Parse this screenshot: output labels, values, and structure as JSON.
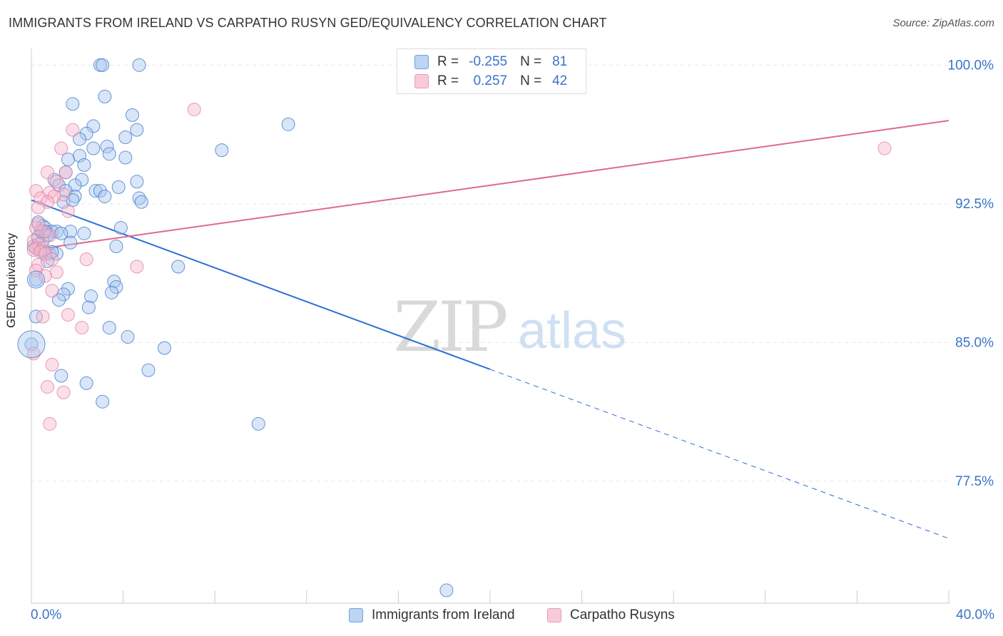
{
  "header": {
    "title": "IMMIGRANTS FROM IRELAND VS CARPATHO RUSYN GED/EQUIVALENCY CORRELATION CHART",
    "source": "Source: ZipAtlas.com"
  },
  "watermark": {
    "zip": "ZIP",
    "atlas": "atlas"
  },
  "colors": {
    "blue_fill": "#a8c8f0",
    "blue_stroke": "#3a73c8",
    "blue_line": "#2e6fd4",
    "pink_fill": "#f6b8cc",
    "pink_stroke": "#e07aa0",
    "pink_line": "#e0698f",
    "axis_text": "#3a73c8",
    "grid": "#e5e5e5"
  },
  "legend": {
    "rows": [
      {
        "r_label": "R =",
        "r_value": "-0.255",
        "n_label": "N =",
        "n_value": "81"
      },
      {
        "r_label": "R =",
        "r_value": "0.257",
        "n_label": "N =",
        "n_value": "42"
      }
    ]
  },
  "chart_data": {
    "type": "scatter",
    "title": "IMMIGRANTS FROM IRELAND VS CARPATHO RUSYN GED/EQUIVALENCY CORRELATION CHART",
    "xlabel": "",
    "ylabel": "GED/Equivalency",
    "xlim": [
      0,
      40
    ],
    "ylim": [
      70.9,
      100.9
    ],
    "x_tick_labels": [
      {
        "value": 0,
        "label": "0.0%"
      },
      {
        "value": 40,
        "label": "40.0%"
      }
    ],
    "y_tick_labels": [
      {
        "value": 100.0,
        "label": "100.0%"
      },
      {
        "value": 92.5,
        "label": "92.5%"
      },
      {
        "value": 85.0,
        "label": "85.0%"
      },
      {
        "value": 77.5,
        "label": "77.5%"
      }
    ],
    "grid": true,
    "legend_position": "top-center",
    "series": [
      {
        "name": "Immigrants from Ireland",
        "color": "blue",
        "R": -0.255,
        "N": 81,
        "trend": {
          "x0": 0,
          "y0": 92.7,
          "x_solid_end": 20.0,
          "x1": 40,
          "y1": 74.4
        },
        "points": [
          {
            "x": 3.0,
            "y": 100.0
          },
          {
            "x": 3.1,
            "y": 100.0
          },
          {
            "x": 4.7,
            "y": 100.0
          },
          {
            "x": 3.2,
            "y": 98.3
          },
          {
            "x": 1.8,
            "y": 97.9
          },
          {
            "x": 4.4,
            "y": 97.3
          },
          {
            "x": 2.7,
            "y": 96.7
          },
          {
            "x": 11.2,
            "y": 96.8
          },
          {
            "x": 2.4,
            "y": 96.3
          },
          {
            "x": 4.6,
            "y": 96.5
          },
          {
            "x": 2.1,
            "y": 96.0
          },
          {
            "x": 4.1,
            "y": 96.1
          },
          {
            "x": 2.7,
            "y": 95.5
          },
          {
            "x": 3.3,
            "y": 95.6
          },
          {
            "x": 8.3,
            "y": 95.4
          },
          {
            "x": 2.1,
            "y": 95.1
          },
          {
            "x": 3.4,
            "y": 95.2
          },
          {
            "x": 4.1,
            "y": 95.0
          },
          {
            "x": 1.6,
            "y": 94.9
          },
          {
            "x": 2.3,
            "y": 94.6
          },
          {
            "x": 1.5,
            "y": 94.2
          },
          {
            "x": 1.0,
            "y": 93.8
          },
          {
            "x": 2.2,
            "y": 93.8
          },
          {
            "x": 4.6,
            "y": 93.7
          },
          {
            "x": 1.2,
            "y": 93.5
          },
          {
            "x": 1.9,
            "y": 93.5
          },
          {
            "x": 3.8,
            "y": 93.4
          },
          {
            "x": 1.5,
            "y": 93.2
          },
          {
            "x": 2.8,
            "y": 93.2
          },
          {
            "x": 3.0,
            "y": 93.2
          },
          {
            "x": 1.9,
            "y": 92.9
          },
          {
            "x": 3.2,
            "y": 92.9
          },
          {
            "x": 4.7,
            "y": 92.8
          },
          {
            "x": 1.4,
            "y": 92.6
          },
          {
            "x": 1.8,
            "y": 92.7
          },
          {
            "x": 4.8,
            "y": 92.6
          },
          {
            "x": 0.3,
            "y": 91.5
          },
          {
            "x": 0.5,
            "y": 91.3
          },
          {
            "x": 0.6,
            "y": 91.2
          },
          {
            "x": 3.9,
            "y": 91.2
          },
          {
            "x": 0.4,
            "y": 91.0
          },
          {
            "x": 0.9,
            "y": 91.0
          },
          {
            "x": 1.1,
            "y": 91.0
          },
          {
            "x": 1.7,
            "y": 91.0
          },
          {
            "x": 2.3,
            "y": 90.9
          },
          {
            "x": 0.7,
            "y": 90.8
          },
          {
            "x": 0.3,
            "y": 90.7
          },
          {
            "x": 0.5,
            "y": 90.5
          },
          {
            "x": 1.7,
            "y": 90.4
          },
          {
            "x": 3.7,
            "y": 90.2
          },
          {
            "x": 0.2,
            "y": 90.1
          },
          {
            "x": 0.4,
            "y": 90.0
          },
          {
            "x": 0.6,
            "y": 89.9
          },
          {
            "x": 0.8,
            "y": 89.8
          },
          {
            "x": 1.1,
            "y": 89.8
          },
          {
            "x": 0.7,
            "y": 89.4
          },
          {
            "x": 6.4,
            "y": 89.1
          },
          {
            "x": 0.2,
            "y": 88.4
          },
          {
            "x": 3.6,
            "y": 88.3
          },
          {
            "x": 3.7,
            "y": 88.0
          },
          {
            "x": 1.6,
            "y": 87.9
          },
          {
            "x": 3.5,
            "y": 87.7
          },
          {
            "x": 1.4,
            "y": 87.6
          },
          {
            "x": 2.6,
            "y": 87.5
          },
          {
            "x": 1.2,
            "y": 87.3
          },
          {
            "x": 2.5,
            "y": 86.9
          },
          {
            "x": 0.2,
            "y": 86.4
          },
          {
            "x": 3.4,
            "y": 85.8
          },
          {
            "x": 4.2,
            "y": 85.3
          },
          {
            "x": 5.8,
            "y": 84.7
          },
          {
            "x": 0.0,
            "y": 84.9
          },
          {
            "x": 5.1,
            "y": 83.5
          },
          {
            "x": 1.3,
            "y": 83.2
          },
          {
            "x": 2.4,
            "y": 82.8
          },
          {
            "x": 3.1,
            "y": 81.8
          },
          {
            "x": 9.9,
            "y": 80.6
          },
          {
            "x": 18.1,
            "y": 71.6
          },
          {
            "x": 0.1,
            "y": 90.2
          },
          {
            "x": 0.6,
            "y": 91.0
          },
          {
            "x": 1.3,
            "y": 90.9
          },
          {
            "x": 0.9,
            "y": 89.9
          }
        ]
      },
      {
        "name": "Carpatho Rusyns",
        "color": "pink",
        "R": 0.257,
        "N": 42,
        "trend": {
          "x0": 0,
          "y0": 90.0,
          "x1": 40,
          "y1": 97.0
        },
        "points": [
          {
            "x": 7.1,
            "y": 97.6
          },
          {
            "x": 1.8,
            "y": 96.5
          },
          {
            "x": 1.3,
            "y": 95.5
          },
          {
            "x": 37.2,
            "y": 95.5
          },
          {
            "x": 0.7,
            "y": 94.2
          },
          {
            "x": 1.5,
            "y": 94.2
          },
          {
            "x": 1.1,
            "y": 93.7
          },
          {
            "x": 0.2,
            "y": 93.2
          },
          {
            "x": 0.8,
            "y": 93.1
          },
          {
            "x": 1.4,
            "y": 93.0
          },
          {
            "x": 1.0,
            "y": 92.9
          },
          {
            "x": 0.4,
            "y": 92.8
          },
          {
            "x": 0.7,
            "y": 92.6
          },
          {
            "x": 0.3,
            "y": 92.3
          },
          {
            "x": 1.6,
            "y": 92.1
          },
          {
            "x": 0.2,
            "y": 91.2
          },
          {
            "x": 0.5,
            "y": 91.0
          },
          {
            "x": 0.8,
            "y": 90.8
          },
          {
            "x": 0.1,
            "y": 90.5
          },
          {
            "x": 0.3,
            "y": 90.3
          },
          {
            "x": 0.2,
            "y": 90.1
          },
          {
            "x": 0.5,
            "y": 90.1
          },
          {
            "x": 0.1,
            "y": 90.0
          },
          {
            "x": 0.4,
            "y": 89.9
          },
          {
            "x": 0.6,
            "y": 89.8
          },
          {
            "x": 0.9,
            "y": 89.5
          },
          {
            "x": 2.4,
            "y": 89.5
          },
          {
            "x": 0.3,
            "y": 89.2
          },
          {
            "x": 4.6,
            "y": 89.1
          },
          {
            "x": 0.2,
            "y": 88.9
          },
          {
            "x": 1.1,
            "y": 88.8
          },
          {
            "x": 0.6,
            "y": 88.6
          },
          {
            "x": 0.9,
            "y": 87.8
          },
          {
            "x": 0.5,
            "y": 86.4
          },
          {
            "x": 1.6,
            "y": 86.5
          },
          {
            "x": 2.2,
            "y": 85.8
          },
          {
            "x": 0.1,
            "y": 84.4
          },
          {
            "x": 0.9,
            "y": 83.8
          },
          {
            "x": 0.7,
            "y": 82.6
          },
          {
            "x": 1.4,
            "y": 82.3
          },
          {
            "x": 0.8,
            "y": 80.6
          },
          {
            "x": 0.3,
            "y": 91.4
          }
        ]
      }
    ]
  }
}
